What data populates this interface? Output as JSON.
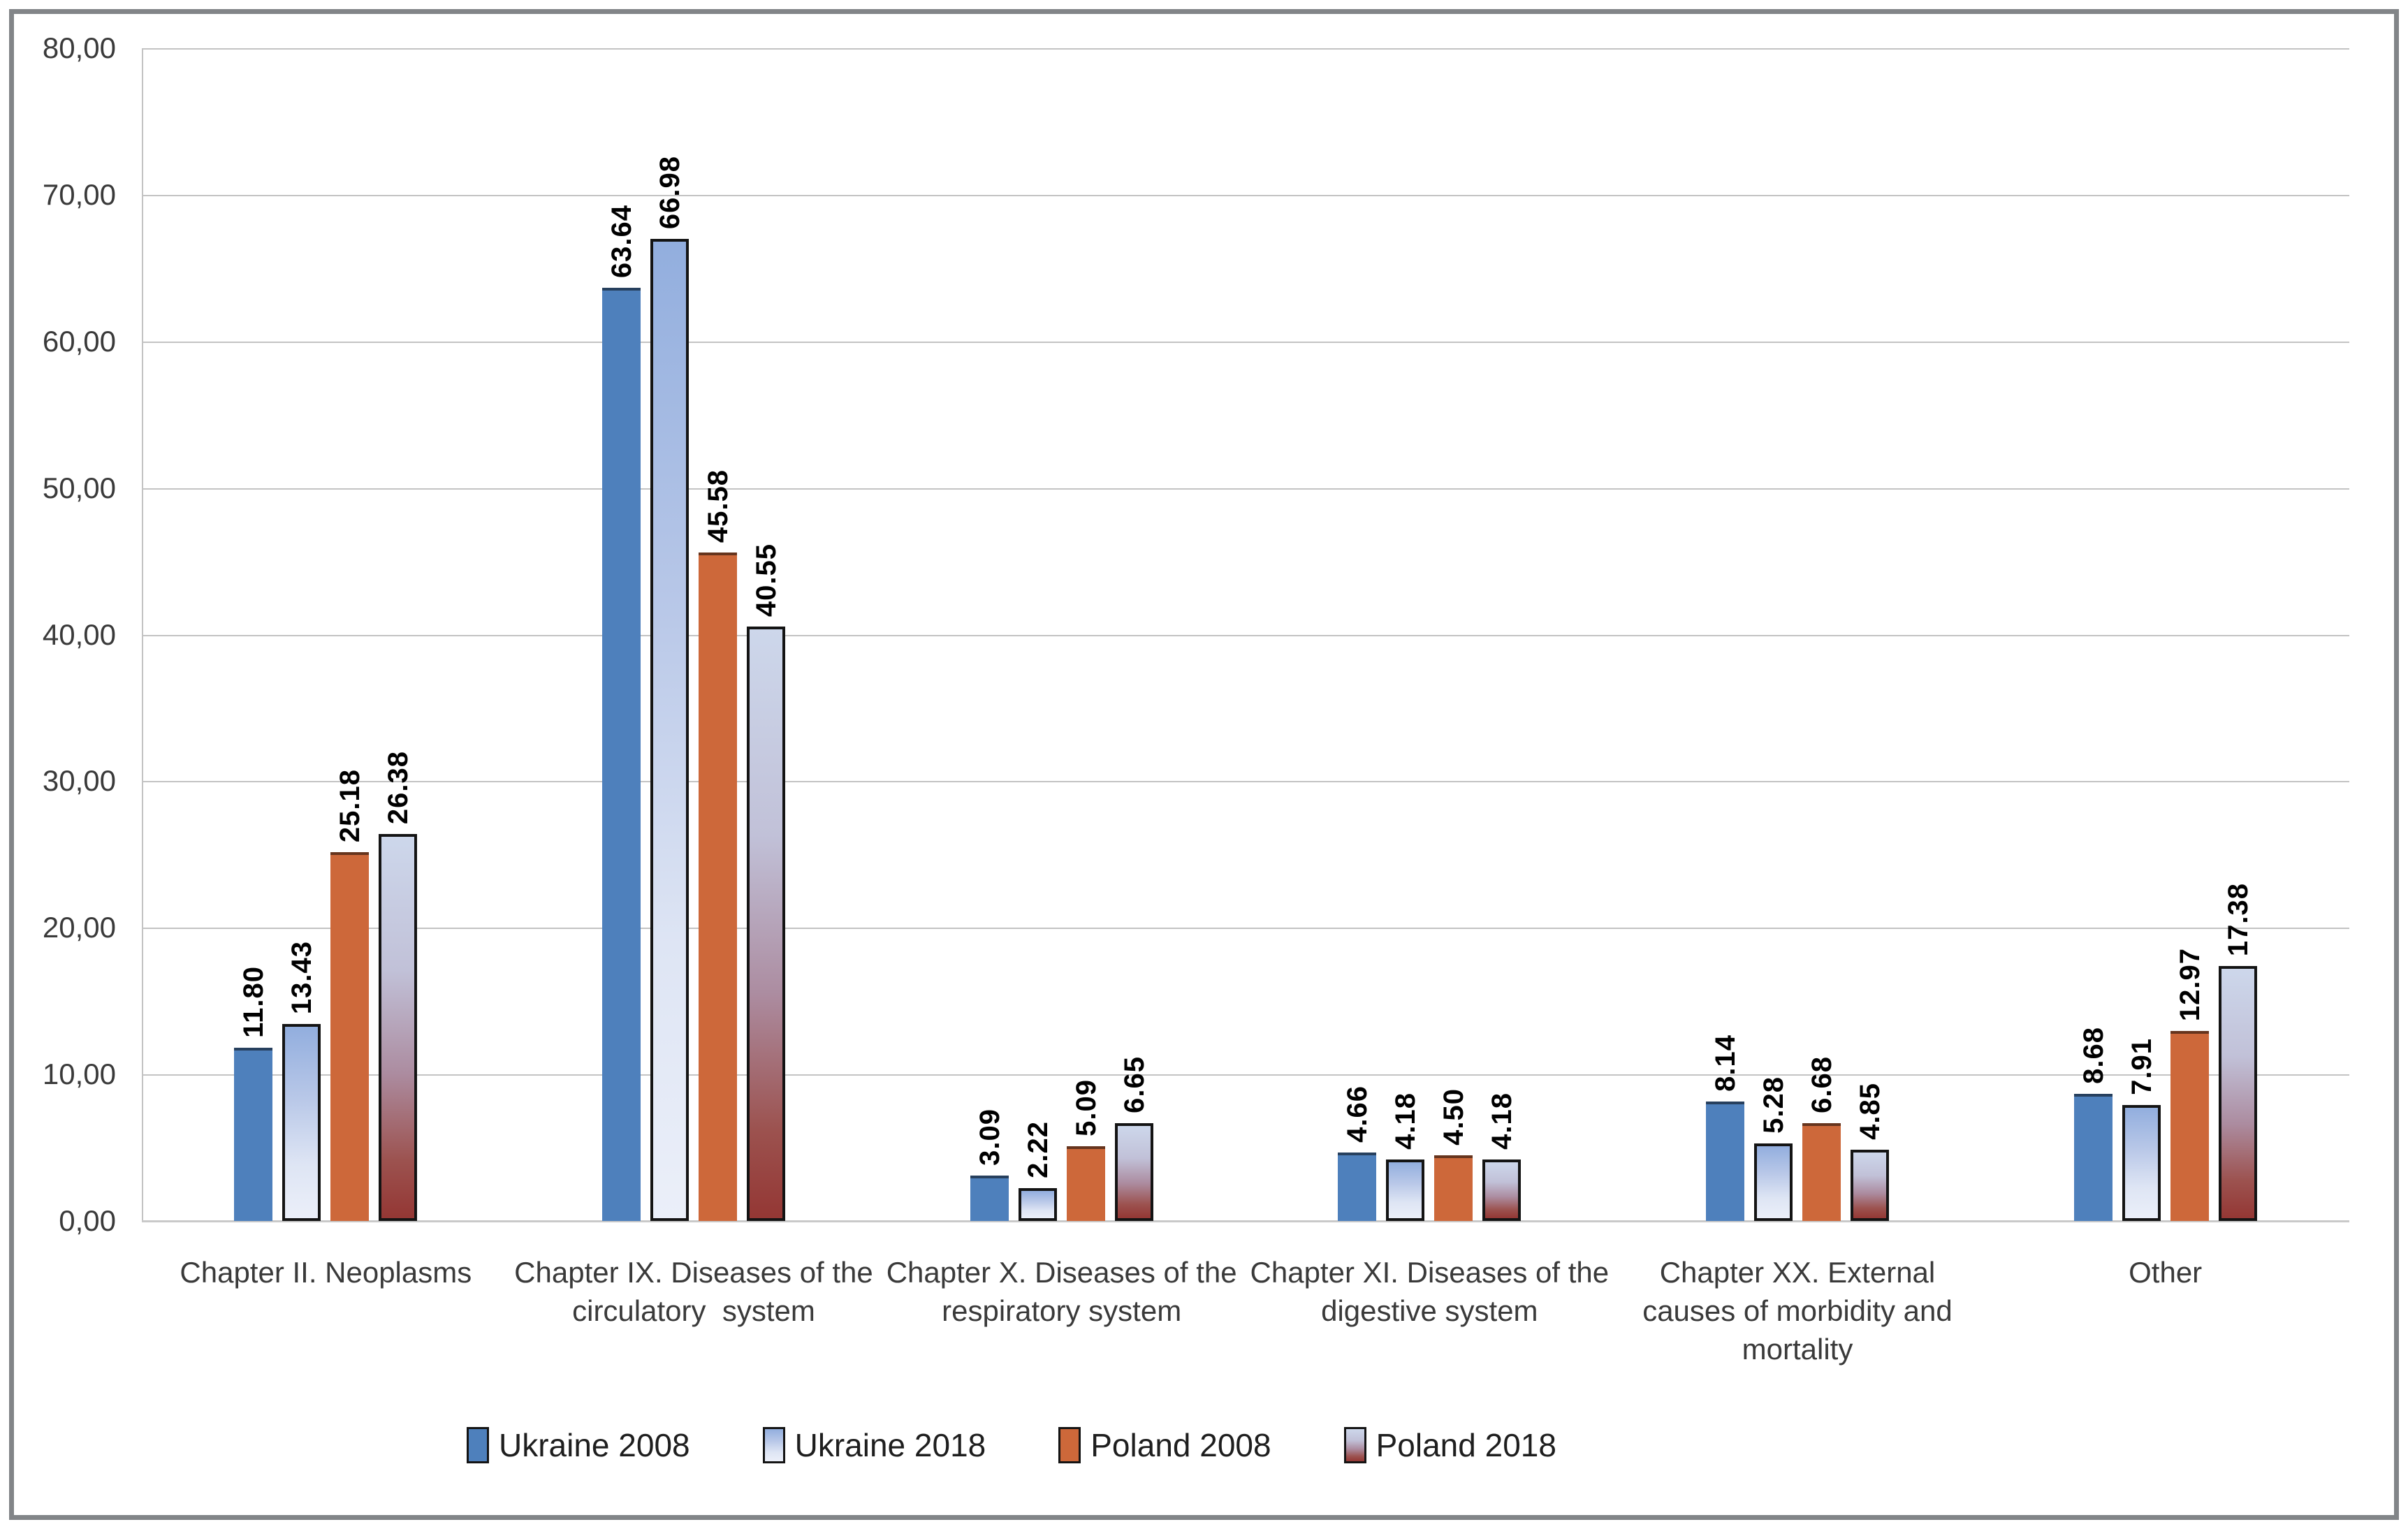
{
  "chart_data": {
    "type": "bar",
    "title": "",
    "categories": [
      "Chapter II. Neoplasms",
      "Chapter IX. Diseases of the circulatory system",
      "Chapter X. Diseases of the respiratory system",
      "Chapter XI. Diseases of the digestive system",
      "Chapter XX. External causes of morbidity and mortality",
      "Other"
    ],
    "category_label_lines": [
      [
        "Chapter II. Neoplasms"
      ],
      [
        "Chapter IX. Diseases of the",
        "circulatory  system"
      ],
      [
        "Chapter X. Diseases of the",
        "respiratory system"
      ],
      [
        "Chapter XI. Diseases of the",
        "digestive system"
      ],
      [
        "Chapter XX. External",
        "causes of morbidity and",
        "mortality"
      ],
      [
        "Other"
      ]
    ],
    "series": [
      {
        "name": "Ukraine 2008",
        "style": "solid-blue",
        "values": [
          11.8,
          63.64,
          3.09,
          4.66,
          8.14,
          8.68
        ],
        "labels": [
          "11.80",
          "63.64",
          "3.09",
          "4.66",
          "8.14",
          "8.68"
        ]
      },
      {
        "name": "Ukraine 2018",
        "style": "gradient-blue",
        "values": [
          13.43,
          66.98,
          2.22,
          4.18,
          5.28,
          7.91
        ],
        "labels": [
          "13.43",
          "66.98",
          "2.22",
          "4.18",
          "5.28",
          "7.91"
        ]
      },
      {
        "name": "Poland 2008",
        "style": "solid-orange",
        "values": [
          25.18,
          45.58,
          5.09,
          4.5,
          6.68,
          12.97
        ],
        "labels": [
          "25.18",
          "45.58",
          "5.09",
          "4.50",
          "6.68",
          "12.97"
        ]
      },
      {
        "name": "Poland 2018",
        "style": "gradient-red",
        "values": [
          26.38,
          40.55,
          6.65,
          4.18,
          4.85,
          17.38
        ],
        "labels": [
          "26.38",
          "40.55",
          "6.65",
          "4.18",
          "4.85",
          "17.38"
        ]
      }
    ],
    "y_axis": {
      "min": 0,
      "max": 80,
      "step": 10,
      "tick_labels": [
        "0,00",
        "10,00",
        "20,00",
        "30,00",
        "40,00",
        "50,00",
        "60,00",
        "70,00",
        "80,00"
      ]
    },
    "legend": {
      "position": "bottom",
      "entries": [
        "Ukraine 2008",
        "Ukraine 2018",
        "Poland 2008",
        "Poland 2018"
      ]
    },
    "grid": true,
    "colors": {
      "solid_blue": "#4E80BC",
      "solid_orange": "#CD683A",
      "gradient_blue_top": "#92AEDE",
      "gradient_blue_bottom": "#EBEFF9",
      "gradient_red_top": "#CDD7EB",
      "gradient_red_bottom": "#943734",
      "gridline": "#C3C3C3",
      "frame_border": "#828588",
      "axis_text": "#3A3A3A",
      "value_label_text": "#000000"
    }
  }
}
